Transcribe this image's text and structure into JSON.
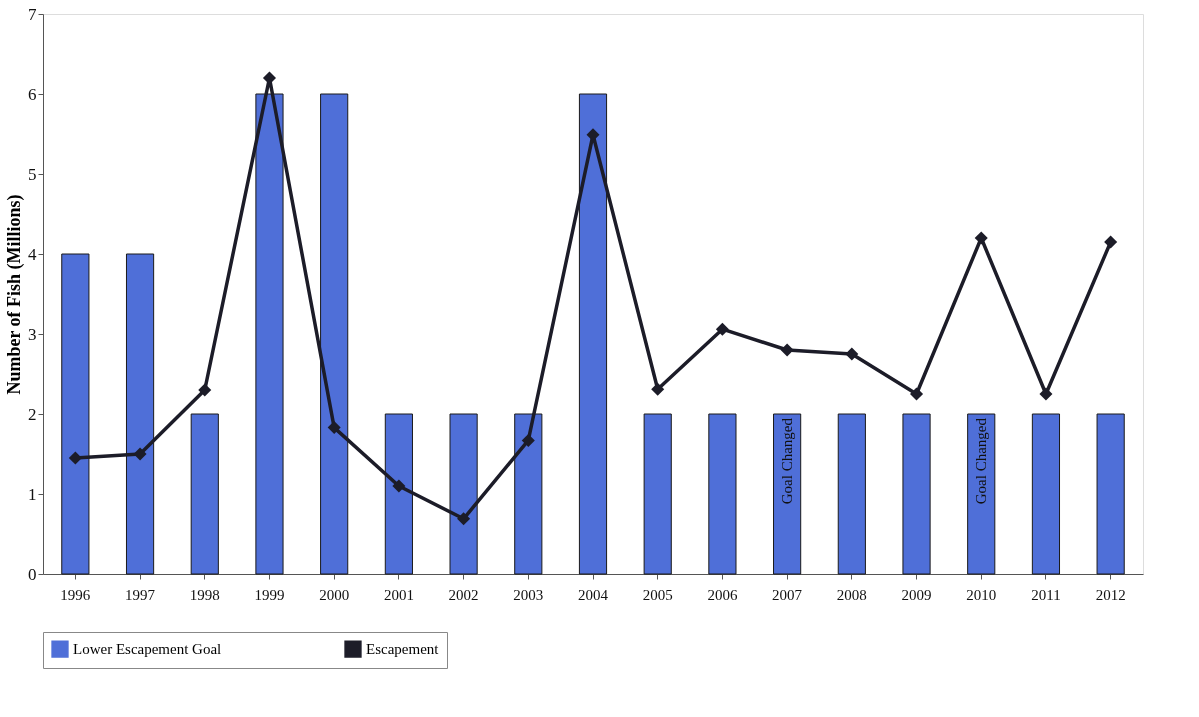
{
  "chart_data": {
    "type": "bar",
    "ylabel": "Number of Fish (Millions)",
    "categories": [
      "1996",
      "1997",
      "1998",
      "1999",
      "2000",
      "2001",
      "2002",
      "2003",
      "2004",
      "2005",
      "2006",
      "2007",
      "2008",
      "2009",
      "2010",
      "2011",
      "2012"
    ],
    "series": [
      {
        "name": "Lower Escapement Goal",
        "color": "#4f6fd8",
        "values": [
          4,
          4,
          2,
          6,
          6,
          2,
          2,
          2,
          6,
          2,
          2,
          2,
          2,
          2,
          2,
          2,
          2
        ]
      },
      {
        "name": "Escapement",
        "type": "line",
        "color": "#1c1c28",
        "values": [
          1.45,
          1.5,
          2.3,
          6.2,
          1.83,
          1.1,
          0.69,
          1.67,
          5.49,
          2.31,
          3.06,
          2.8,
          2.75,
          2.25,
          4.2,
          2.25,
          4.15
        ]
      }
    ],
    "ylim": [
      0,
      7
    ],
    "yticks": [
      0,
      1,
      2,
      3,
      4,
      5,
      6,
      7
    ],
    "grid": false,
    "legend": "bottom",
    "marker": "diamond",
    "line_style": "solid",
    "annotations": [
      {
        "text": "Goal Changed",
        "x": "2007",
        "y": 2
      },
      {
        "text": "Goal Changed",
        "x": "2010",
        "y": 2
      }
    ]
  }
}
